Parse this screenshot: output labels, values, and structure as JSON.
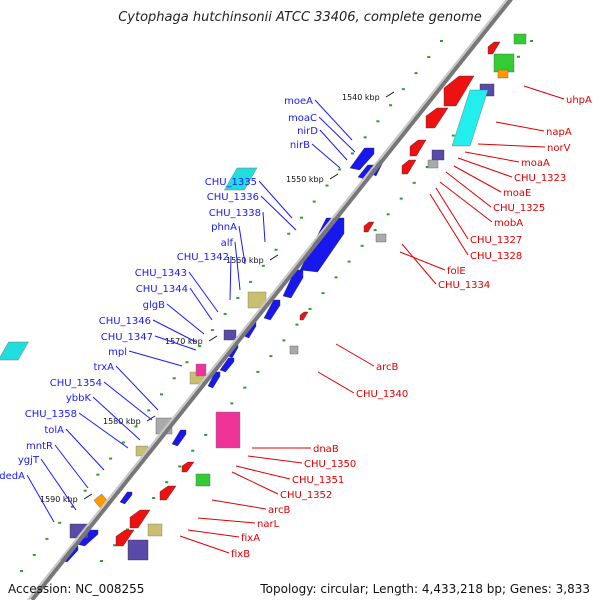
{
  "title": "Cytophaga hutchinsonii ATCC 33406, complete genome",
  "footer": {
    "accession": "Accession: NC_008255",
    "summary": "Topology: circular; Length: 4,433,218 bp; Genes: 3,833"
  },
  "colors": {
    "forward_label": "#1a1aff",
    "reverse_label": "#e00000",
    "backbone": "#8a8a8a",
    "tick_minor": "#2e9e2e"
  },
  "scale_labels": [
    "1540 kbp",
    "1550 kbp",
    "1560 kbp",
    "1570 kbp",
    "1580 kbp",
    "1590 kbp"
  ],
  "forward_labels": [
    "moeA",
    "moaC",
    "nirD",
    "nirB",
    "CHU_1335",
    "CHU_1336",
    "CHU_1338",
    "phnA",
    "alf",
    "CHU_1342",
    "CHU_1343",
    "CHU_1344",
    "glgB",
    "CHU_1346",
    "CHU_1347",
    "mpl",
    "trxA",
    "CHU_1354",
    "ybbK",
    "CHU_1358",
    "tolA",
    "mntR",
    "ygjT",
    "dedA"
  ],
  "reverse_labels": [
    "uhpA",
    "napA",
    "norV",
    "moaA",
    "CHU_1323",
    "moaE",
    "CHU_1325",
    "mobA",
    "CHU_1327",
    "CHU_1328",
    "folE",
    "CHU_1334",
    "arcB",
    "CHU_1340",
    "dnaB",
    "CHU_1350",
    "CHU_1351",
    "CHU_1352",
    "arcB",
    "narL",
    "fixA",
    "fixB"
  ]
}
